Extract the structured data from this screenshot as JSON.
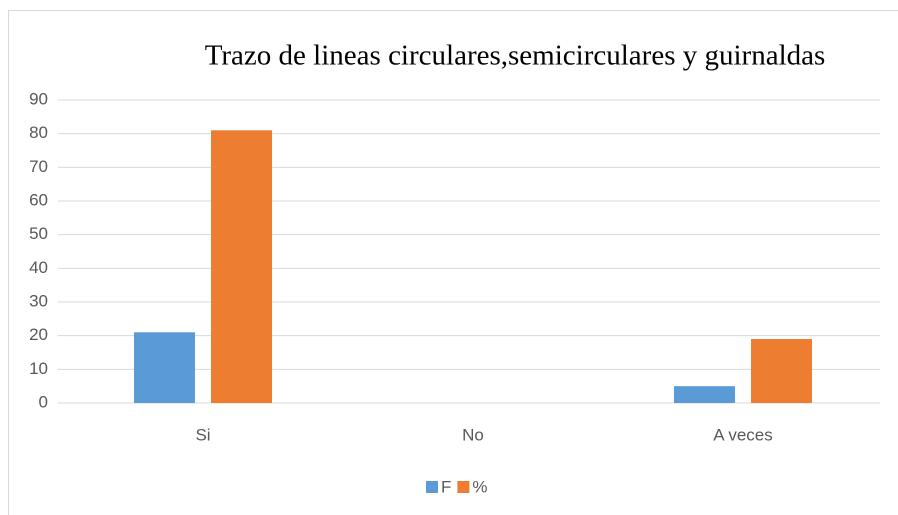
{
  "chart_data": {
    "type": "bar",
    "title": "Trazo de lineas circulares,semicirculares y guirnaldas",
    "categories": [
      "Si",
      "No",
      "A veces"
    ],
    "series": [
      {
        "name": "F",
        "color": "#5b9bd5",
        "values": [
          21,
          0,
          5
        ]
      },
      {
        "name": "%",
        "color": "#ed7d31",
        "values": [
          81,
          0,
          19
        ]
      }
    ],
    "ylim": [
      0,
      90
    ],
    "yticks": [
      0,
      10,
      20,
      30,
      40,
      50,
      60,
      70,
      80,
      90
    ],
    "grid": true,
    "legend": "bottom"
  }
}
